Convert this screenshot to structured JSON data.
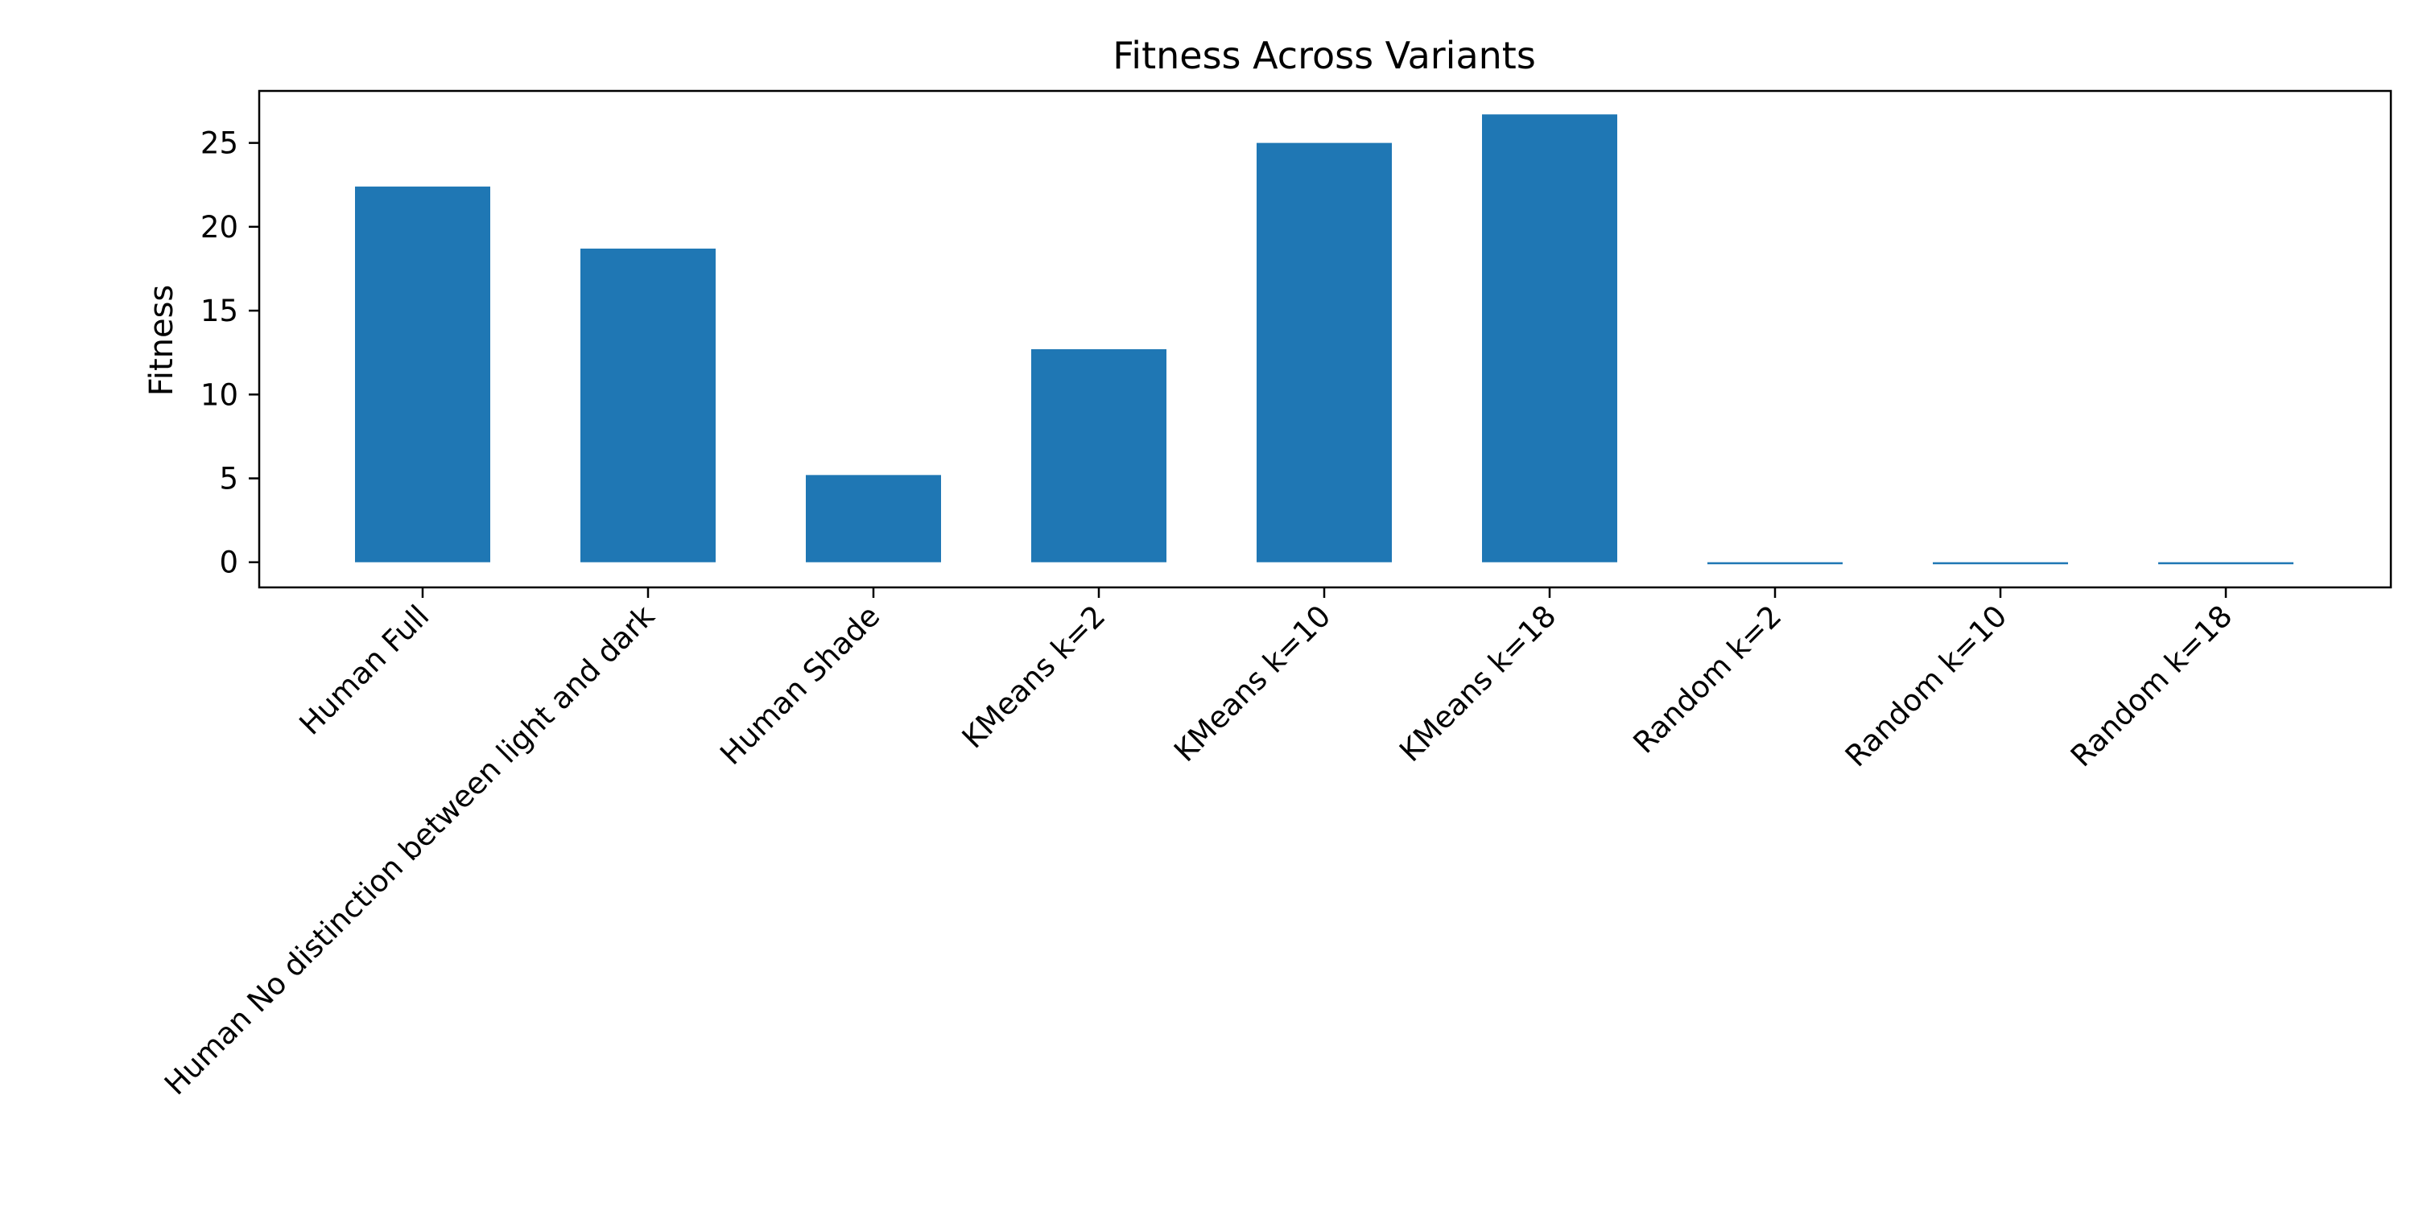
{
  "chart_data": {
    "type": "bar",
    "title": "Fitness Across Variants",
    "xlabel": "",
    "ylabel": "Fitness",
    "categories": [
      "Human Full",
      "Human No distinction between light and dark",
      "Human Shade",
      "KMeans k=2",
      "KMeans k=10",
      "KMeans k=18",
      "Random k=2",
      "Random k=10",
      "Random k=18"
    ],
    "values": [
      22.4,
      18.7,
      5.2,
      12.7,
      25.0,
      26.7,
      -0.05,
      -0.1,
      -0.1
    ],
    "ylim": [
      -1.5,
      28.1
    ],
    "yticks": [
      0,
      5,
      10,
      15,
      20,
      25
    ],
    "grid": false,
    "bar_color": "#1f77b4"
  }
}
